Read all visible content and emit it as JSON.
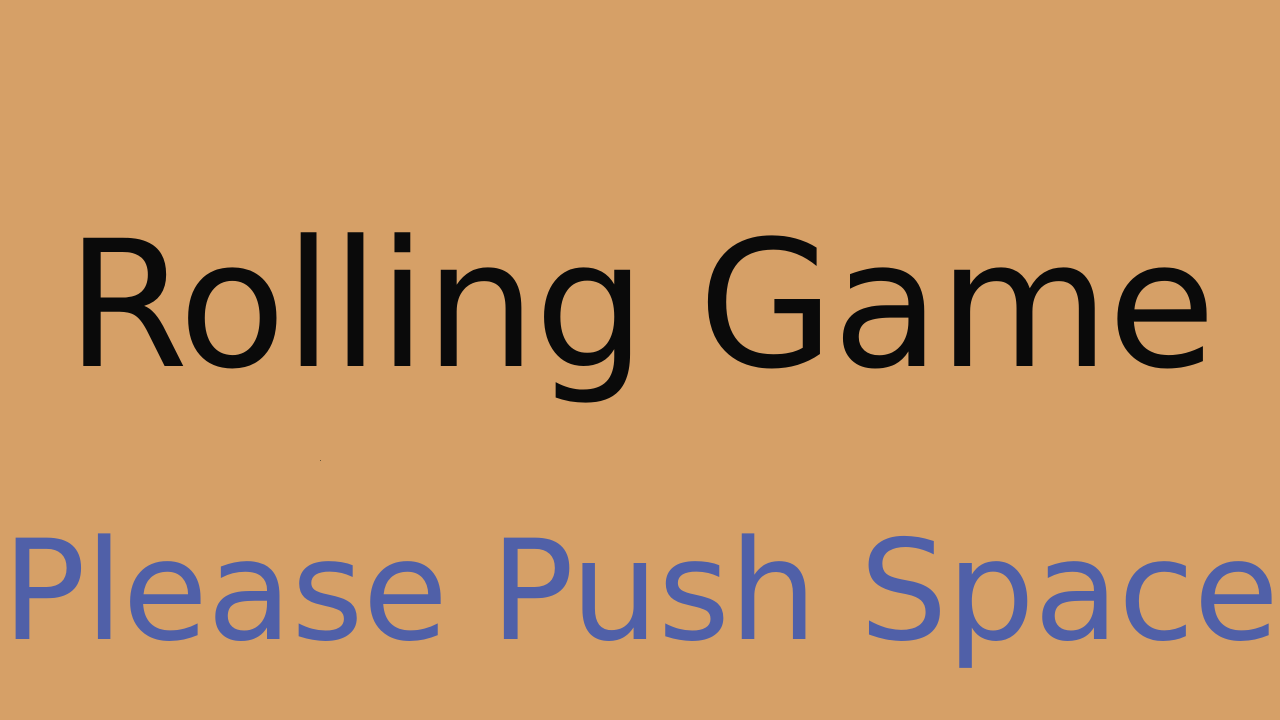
{
  "screen": {
    "background_color": "#D6A067"
  },
  "title": {
    "text": "Rolling Game",
    "color": "#0a0a0a"
  },
  "prompt": {
    "text": "Please Push Space",
    "color": "#5060A8"
  }
}
